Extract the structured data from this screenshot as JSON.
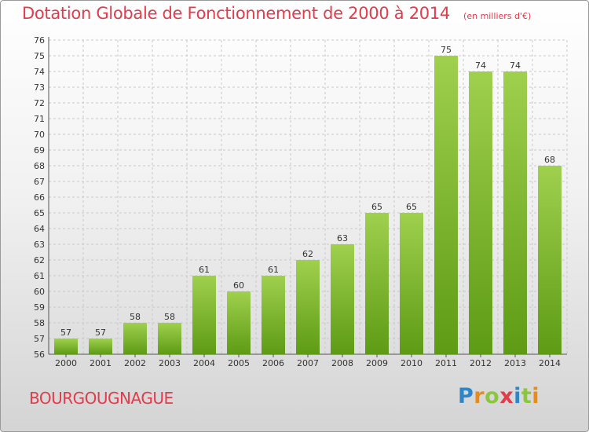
{
  "title": "Dotation Globale de Fonctionnement de 2000 à 2014",
  "unit": "(en milliers d'€)",
  "commune": "BOURGOUGNAGUE",
  "logo": {
    "letters": [
      "P",
      "r",
      "o",
      "x",
      "i",
      "t",
      "i"
    ],
    "colors": [
      "#2e86c8",
      "#e88b1a",
      "#8cc63e",
      "#e23c4a",
      "#2e86c8",
      "#8cc63e",
      "#e88b1a"
    ]
  },
  "colors": {
    "bar_top": "#9fd04e",
    "bar_bottom": "#5e9b14",
    "title": "#e23c4a",
    "grid": "#c9c9c9"
  },
  "chart_data": {
    "type": "bar",
    "categories": [
      "2000",
      "2001",
      "2002",
      "2003",
      "2004",
      "2005",
      "2006",
      "2007",
      "2008",
      "2009",
      "2010",
      "2011",
      "2012",
      "2013",
      "2014"
    ],
    "values": [
      57,
      57,
      58,
      58,
      61,
      60,
      61,
      62,
      63,
      65,
      65,
      75,
      74,
      74,
      68
    ],
    "ylim": [
      56,
      76
    ],
    "yticks": [
      56,
      57,
      58,
      59,
      60,
      61,
      62,
      63,
      64,
      65,
      66,
      67,
      68,
      69,
      70,
      71,
      72,
      73,
      74,
      75,
      76
    ],
    "grid": true,
    "data_labels": true
  }
}
